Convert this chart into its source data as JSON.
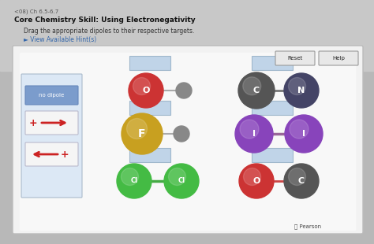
{
  "fig_bg": "#b8b8b8",
  "outer_bg": "#c8c8c8",
  "panel_bg": "#f0f0f0",
  "inner_bg": "#f8f8f8",
  "title_text": "<08) Ch 6.5-6.7",
  "heading": "Core Chemistry Skill: Using Electronegativity",
  "instruction": "Drag the appropriate dipoles to their respective targets.",
  "hint": "► View Available Hint(s)",
  "box_fill": "#c0d4e8",
  "box_edge": "#a0b8cc",
  "reset_label": "Reset",
  "help_label": "Help",
  "no_dipole_label": "no dipole",
  "no_dipole_fill": "#7b9ccc",
  "arrow_box_fill": "#f5f5f5",
  "arrow_box_edge": "#bbbbcc",
  "left_panel_fill": "#dce8f5",
  "left_panel_edge": "#aabbcc",
  "pearson_text": "Ⓟ Pearson"
}
